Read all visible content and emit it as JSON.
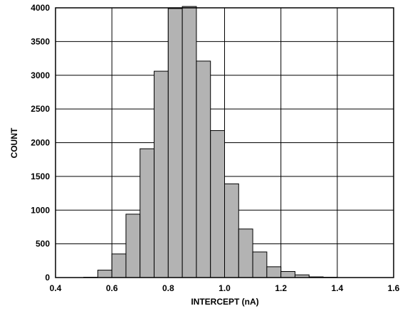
{
  "chart_data": {
    "type": "bar",
    "title": "",
    "xlabel": "INTERCEPT (nA)",
    "ylabel": "COUNT",
    "xlim": [
      0.4,
      1.6
    ],
    "ylim": [
      0,
      4000
    ],
    "xticks": [
      0.4,
      0.6,
      0.8,
      1.0,
      1.2,
      1.4,
      1.6
    ],
    "xtick_labels": [
      "0.4",
      "0.6",
      "0.8",
      "1.0",
      "1.2",
      "1.4",
      "1.6"
    ],
    "yticks": [
      0,
      500,
      1000,
      1500,
      2000,
      2500,
      3000,
      3500,
      4000
    ],
    "ytick_labels": [
      "0",
      "500",
      "1000",
      "1500",
      "2000",
      "2500",
      "3000",
      "3500",
      "4000"
    ],
    "grid": true,
    "bin_width": 0.05,
    "bin_starts": [
      0.45,
      0.5,
      0.55,
      0.6,
      0.65,
      0.7,
      0.75,
      0.8,
      0.85,
      0.9,
      0.95,
      1.0,
      1.05,
      1.1,
      1.15,
      1.2,
      1.25,
      1.3,
      1.35,
      1.4,
      1.45,
      1.5,
      1.55
    ],
    "values": [
      0,
      5,
      110,
      350,
      940,
      1910,
      3060,
      3990,
      4020,
      3210,
      2180,
      1390,
      720,
      380,
      160,
      90,
      40,
      10,
      5,
      0,
      0,
      0,
      0
    ],
    "colors": {
      "bar_fill": "#b3b3b3",
      "bar_stroke": "#000000",
      "grid": "#000000"
    }
  }
}
